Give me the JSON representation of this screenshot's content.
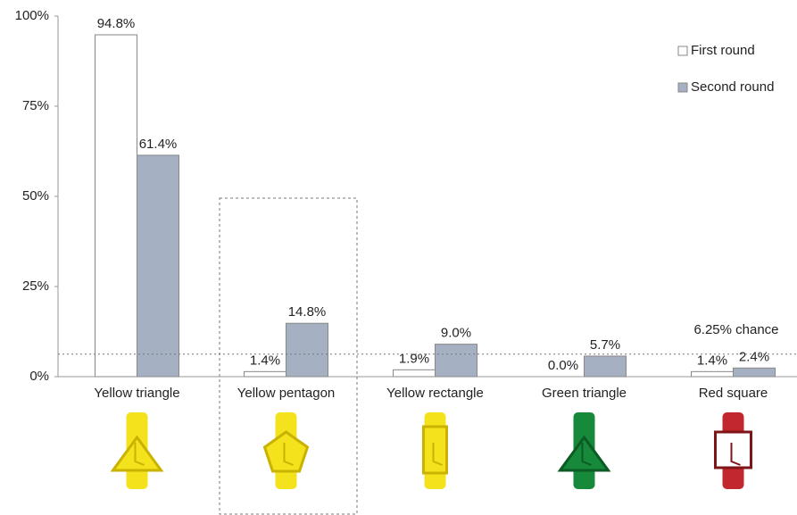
{
  "chart_data": {
    "type": "bar",
    "categories": [
      "Yellow triangle",
      "Yellow pentagon",
      "Yellow rectangle",
      "Green triangle",
      "Red square"
    ],
    "series": [
      {
        "name": "First round",
        "color": "#ffffff",
        "values": [
          94.8,
          1.4,
          1.9,
          0.0,
          1.4
        ],
        "value_labels": [
          "94.8%",
          "1.4%",
          "1.9%",
          "0.0%",
          "1.4%"
        ]
      },
      {
        "name": "Second round",
        "color": "#a6b0c3",
        "values": [
          61.4,
          14.8,
          9.0,
          5.7,
          2.4
        ],
        "value_labels": [
          "61.4%",
          "14.8%",
          "9.0%",
          "5.7%",
          "2.4%"
        ]
      }
    ],
    "ylim": [
      0,
      100
    ],
    "yticks": [
      {
        "value": 0,
        "label": "0%"
      },
      {
        "value": 25,
        "label": "25%"
      },
      {
        "value": 50,
        "label": "50%"
      },
      {
        "value": 75,
        "label": "75%"
      },
      {
        "value": 100,
        "label": "100%"
      }
    ],
    "chance_line": 6.25,
    "annotation": "6.25% chance",
    "legend": "top-right"
  }
}
